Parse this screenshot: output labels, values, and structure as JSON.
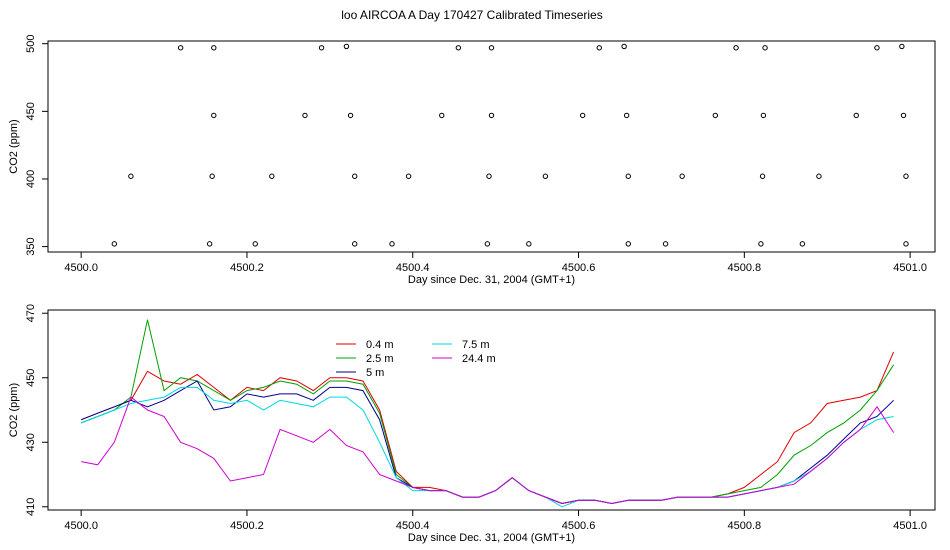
{
  "title": "loo AIRCOA A  Day 170427  Calibrated Timeseries",
  "chart_data": [
    {
      "type": "scatter",
      "xlabel": "Day since Dec. 31, 2004 (GMT+1)",
      "ylabel": "CO2 (ppm)",
      "xlim": [
        4499.96,
        4501.03
      ],
      "ylim": [
        346,
        502
      ],
      "xticks": [
        4500.0,
        4500.2,
        4500.4,
        4500.6,
        4500.8,
        4501.0
      ],
      "xtick_labels": [
        "4500.0",
        "4500.2",
        "4500.4",
        "4500.6",
        "4500.8",
        "4501.0"
      ],
      "yticks": [
        350,
        400,
        450,
        500
      ],
      "ytick_labels": [
        "350",
        "400",
        "450",
        "500"
      ],
      "grid": false,
      "points": [
        {
          "x": 4500.04,
          "y": 352
        },
        {
          "x": 4500.06,
          "y": 402
        },
        {
          "x": 4500.12,
          "y": 497
        },
        {
          "x": 4500.155,
          "y": 352
        },
        {
          "x": 4500.158,
          "y": 402
        },
        {
          "x": 4500.16,
          "y": 497
        },
        {
          "x": 4500.16,
          "y": 447
        },
        {
          "x": 4500.21,
          "y": 352
        },
        {
          "x": 4500.23,
          "y": 402
        },
        {
          "x": 4500.27,
          "y": 447
        },
        {
          "x": 4500.29,
          "y": 497
        },
        {
          "x": 4500.32,
          "y": 498
        },
        {
          "x": 4500.325,
          "y": 447
        },
        {
          "x": 4500.33,
          "y": 402
        },
        {
          "x": 4500.33,
          "y": 352
        },
        {
          "x": 4500.375,
          "y": 352
        },
        {
          "x": 4500.395,
          "y": 402
        },
        {
          "x": 4500.435,
          "y": 447
        },
        {
          "x": 4500.455,
          "y": 497
        },
        {
          "x": 4500.49,
          "y": 352
        },
        {
          "x": 4500.492,
          "y": 402
        },
        {
          "x": 4500.495,
          "y": 447
        },
        {
          "x": 4500.495,
          "y": 497
        },
        {
          "x": 4500.54,
          "y": 352
        },
        {
          "x": 4500.56,
          "y": 402
        },
        {
          "x": 4500.605,
          "y": 447
        },
        {
          "x": 4500.625,
          "y": 497
        },
        {
          "x": 4500.655,
          "y": 498
        },
        {
          "x": 4500.658,
          "y": 447
        },
        {
          "x": 4500.66,
          "y": 402
        },
        {
          "x": 4500.66,
          "y": 352
        },
        {
          "x": 4500.705,
          "y": 352
        },
        {
          "x": 4500.725,
          "y": 402
        },
        {
          "x": 4500.765,
          "y": 447
        },
        {
          "x": 4500.79,
          "y": 497
        },
        {
          "x": 4500.82,
          "y": 352
        },
        {
          "x": 4500.822,
          "y": 402
        },
        {
          "x": 4500.823,
          "y": 447
        },
        {
          "x": 4500.825,
          "y": 497
        },
        {
          "x": 4500.87,
          "y": 352
        },
        {
          "x": 4500.89,
          "y": 402
        },
        {
          "x": 4500.935,
          "y": 447
        },
        {
          "x": 4500.96,
          "y": 497
        },
        {
          "x": 4500.99,
          "y": 498
        },
        {
          "x": 4500.992,
          "y": 447
        },
        {
          "x": 4500.995,
          "y": 402
        },
        {
          "x": 4500.995,
          "y": 352
        }
      ]
    },
    {
      "type": "line",
      "xlabel": "Day since Dec. 31, 2004 (GMT+1)",
      "ylabel": "CO2 (ppm)",
      "xlim": [
        4499.96,
        4501.03
      ],
      "ylim": [
        409,
        471
      ],
      "xticks": [
        4500.0,
        4500.2,
        4500.4,
        4500.6,
        4500.8,
        4501.0
      ],
      "xtick_labels": [
        "4500.0",
        "4500.2",
        "4500.4",
        "4500.6",
        "4500.8",
        "4501.0"
      ],
      "yticks": [
        410,
        430,
        450,
        470
      ],
      "ytick_labels": [
        "410",
        "430",
        "450",
        "470"
      ],
      "grid": false,
      "legend_position": "top-center",
      "x": [
        4500.0,
        4500.02,
        4500.04,
        4500.06,
        4500.08,
        4500.1,
        4500.12,
        4500.14,
        4500.16,
        4500.18,
        4500.2,
        4500.22,
        4500.24,
        4500.26,
        4500.28,
        4500.3,
        4500.32,
        4500.34,
        4500.36,
        4500.38,
        4500.4,
        4500.42,
        4500.44,
        4500.46,
        4500.48,
        4500.5,
        4500.52,
        4500.54,
        4500.56,
        4500.58,
        4500.6,
        4500.62,
        4500.64,
        4500.66,
        4500.68,
        4500.7,
        4500.72,
        4500.74,
        4500.76,
        4500.78,
        4500.8,
        4500.82,
        4500.84,
        4500.86,
        4500.88,
        4500.9,
        4500.92,
        4500.94,
        4500.96,
        4500.98
      ],
      "series": [
        {
          "name": "0.4 m",
          "color": "#e00000",
          "values": [
            437,
            439,
            441,
            443,
            452,
            449,
            448,
            451,
            447,
            443,
            447,
            446,
            450,
            449,
            446,
            450,
            450,
            449,
            440,
            421,
            416,
            416,
            415,
            413,
            413,
            415,
            419,
            415,
            413,
            411,
            412,
            412,
            411,
            412,
            412,
            412,
            413,
            413,
            413,
            414,
            416,
            420,
            424,
            433,
            436,
            442,
            443,
            444,
            446,
            458
          ]
        },
        {
          "name": "2.5 m",
          "color": "#00a000",
          "values": [
            436,
            438,
            440,
            444,
            468,
            446,
            450,
            449,
            446,
            443,
            446,
            447,
            449,
            448,
            445,
            449,
            449,
            448,
            439,
            420,
            416,
            415,
            415,
            413,
            413,
            415,
            419,
            415,
            413,
            411,
            412,
            412,
            411,
            412,
            412,
            412,
            413,
            413,
            413,
            414,
            415,
            416,
            420,
            426,
            429,
            433,
            436,
            440,
            446,
            454
          ]
        },
        {
          "name": "5 m",
          "color": "#000090",
          "values": [
            437,
            439,
            441,
            443,
            441,
            443,
            446,
            449,
            440,
            441,
            445,
            444,
            445,
            445,
            443,
            447,
            447,
            446,
            437,
            419,
            416,
            415,
            415,
            413,
            413,
            415,
            419,
            415,
            413,
            411,
            412,
            412,
            411,
            412,
            412,
            412,
            413,
            413,
            413,
            413,
            414,
            415,
            416,
            418,
            422,
            426,
            431,
            436,
            438,
            443
          ]
        },
        {
          "name": "7.5 m",
          "color": "#00d8e0",
          "values": [
            436,
            438,
            440,
            442,
            443,
            444,
            447,
            447,
            443,
            442,
            443,
            440,
            443,
            442,
            441,
            444,
            444,
            440,
            430,
            419,
            415,
            415,
            415,
            413,
            413,
            415,
            419,
            415,
            413,
            410,
            412,
            412,
            411,
            412,
            412,
            412,
            413,
            413,
            413,
            413,
            414,
            415,
            416,
            418,
            421,
            425,
            430,
            434,
            437,
            438
          ]
        },
        {
          "name": "24.4 m",
          "color": "#d000d0",
          "values": [
            424,
            423,
            430,
            444,
            440,
            438,
            430,
            428,
            425,
            418,
            419,
            420,
            434,
            432,
            430,
            434,
            429,
            427,
            420,
            418,
            416,
            415,
            415,
            413,
            413,
            415,
            419,
            415,
            413,
            411,
            412,
            412,
            411,
            412,
            412,
            412,
            413,
            413,
            413,
            413,
            414,
            415,
            416,
            417,
            421,
            425,
            430,
            434,
            441,
            433
          ]
        }
      ]
    }
  ]
}
